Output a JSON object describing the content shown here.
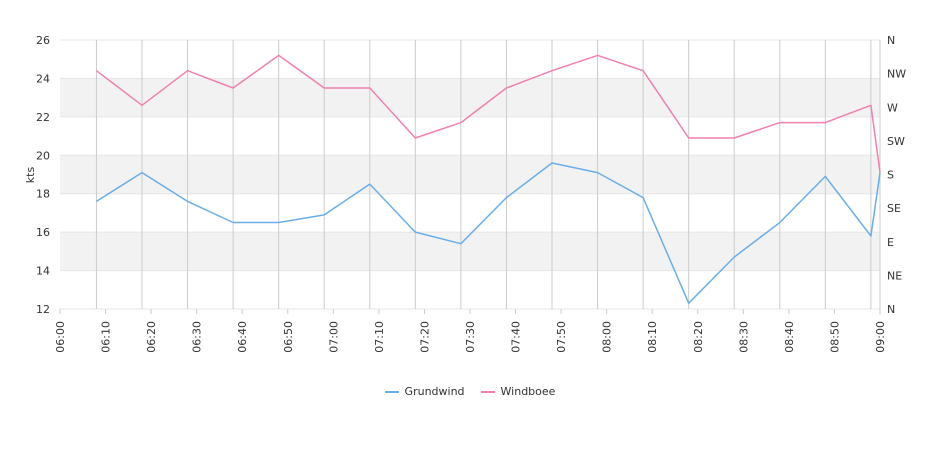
{
  "chart_data": {
    "type": "line",
    "ylabel": "kts",
    "ylim": [
      12,
      26
    ],
    "y_ticks": [
      "12",
      "14",
      "16",
      "18",
      "20",
      "22",
      "24",
      "26"
    ],
    "y2_ticks": [
      "N",
      "NE",
      "E",
      "SE",
      "S",
      "SW",
      "W",
      "NW",
      "N"
    ],
    "x_tick_labels": [
      "06:00",
      "06:10",
      "06:20",
      "06:30",
      "06:40",
      "06:50",
      "07:00",
      "07:10",
      "07:20",
      "07:30",
      "07:40",
      "07:50",
      "08:00",
      "08:10",
      "08:20",
      "08:30",
      "08:40",
      "08:50",
      "09:00"
    ],
    "x_range": [
      "06:00",
      "09:00"
    ],
    "x": [
      "06:08",
      "06:18",
      "06:28",
      "06:38",
      "06:48",
      "06:58",
      "07:08",
      "07:18",
      "07:28",
      "07:38",
      "07:48",
      "07:58",
      "08:08",
      "08:18",
      "08:28",
      "08:38",
      "08:48",
      "08:58",
      "09:00"
    ],
    "series": [
      {
        "name": "Grundwind",
        "color": "#6aaee8",
        "values": [
          17.6,
          19.1,
          17.6,
          16.5,
          16.5,
          16.9,
          18.5,
          16.0,
          15.4,
          17.8,
          19.6,
          19.1,
          17.8,
          12.3,
          14.7,
          16.5,
          18.9,
          15.8,
          19.1
        ]
      },
      {
        "name": "Windboee",
        "color": "#f080b0",
        "values": [
          24.4,
          22.6,
          24.4,
          23.5,
          25.2,
          23.5,
          23.5,
          20.9,
          21.7,
          23.5,
          24.4,
          25.2,
          24.4,
          20.9,
          20.9,
          21.7,
          21.7,
          22.6,
          19.1
        ]
      }
    ],
    "band_color": "#f2f2f2",
    "grid": true,
    "legend_position": "bottom"
  }
}
